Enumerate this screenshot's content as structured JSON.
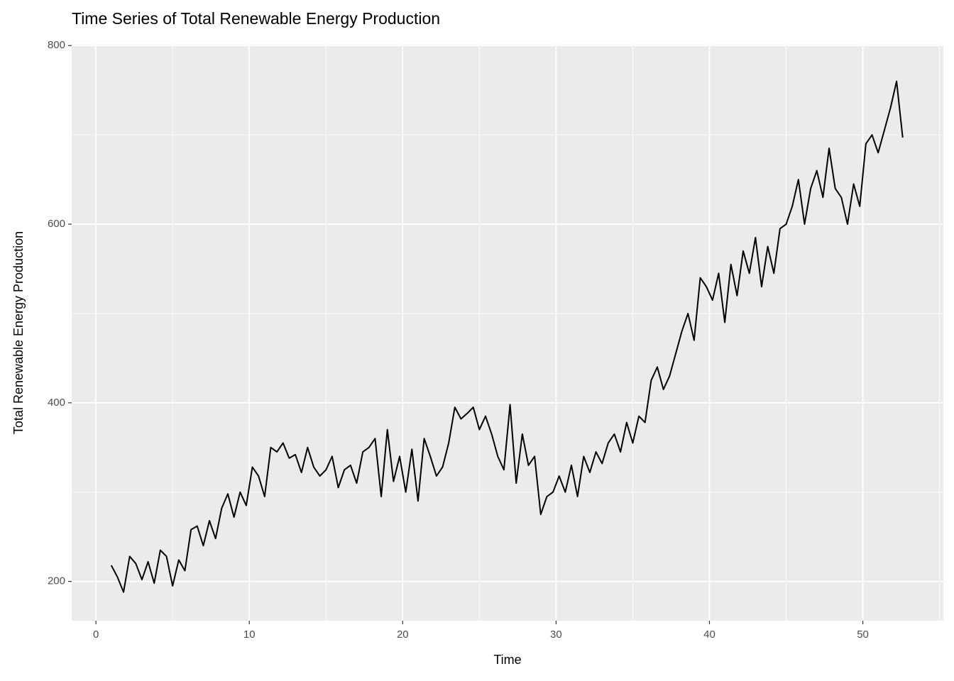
{
  "chart_data": {
    "type": "line",
    "title": "Time Series of Total Renewable Energy Production",
    "x_label": "Time",
    "y_label": "Total Renewable Energy Production",
    "x": [
      1.0,
      1.4,
      1.8,
      2.2,
      2.6,
      3.0,
      3.4,
      3.8,
      4.2,
      4.6,
      5.0,
      5.4,
      5.8,
      6.2,
      6.6,
      7.0,
      7.4,
      7.8,
      8.2,
      8.6,
      9.0,
      9.4,
      9.8,
      10.2,
      10.6,
      11.0,
      11.4,
      11.8,
      12.2,
      12.6,
      13.0,
      13.4,
      13.8,
      14.2,
      14.6,
      15.0,
      15.4,
      15.8,
      16.2,
      16.6,
      17.0,
      17.4,
      17.8,
      18.2,
      18.6,
      19.0,
      19.4,
      19.8,
      20.2,
      20.6,
      21.0,
      21.4,
      21.8,
      22.2,
      22.6,
      23.0,
      23.4,
      23.8,
      24.2,
      24.6,
      25.0,
      25.4,
      25.8,
      26.2,
      26.6,
      27.0,
      27.4,
      27.8,
      28.2,
      28.6,
      29.0,
      29.4,
      29.8,
      30.2,
      30.6,
      31.0,
      31.4,
      31.8,
      32.2,
      32.6,
      33.0,
      33.4,
      33.8,
      34.2,
      34.6,
      35.0,
      35.4,
      35.8,
      36.2,
      36.6,
      37.0,
      37.4,
      37.8,
      38.2,
      38.6,
      39.0,
      39.4,
      39.8,
      40.2,
      40.6,
      41.0,
      41.4,
      41.8,
      42.2,
      42.6,
      43.0,
      43.4,
      43.8,
      44.2,
      44.6,
      45.0,
      45.4,
      45.8,
      46.2,
      46.6,
      47.0,
      47.4,
      47.8,
      48.2,
      48.6,
      49.0,
      49.4,
      49.8,
      50.2,
      50.6,
      51.0,
      51.4,
      51.8,
      52.2,
      52.6
    ],
    "series": [
      {
        "name": "Total",
        "color": "#000000",
        "values": [
          218,
          205,
          188,
          228,
          220,
          202,
          222,
          198,
          235,
          228,
          195,
          224,
          212,
          258,
          262,
          240,
          268,
          248,
          282,
          298,
          272,
          300,
          285,
          328,
          318,
          295,
          350,
          345,
          355,
          338,
          342,
          322,
          350,
          328,
          318,
          325,
          340,
          305,
          325,
          330,
          310,
          345,
          350,
          360,
          295,
          370,
          312,
          340,
          300,
          348,
          290,
          360,
          340,
          318,
          328,
          355,
          395,
          382,
          388,
          395,
          370,
          385,
          365,
          340,
          325,
          398,
          310,
          365,
          330,
          340,
          275,
          295,
          300,
          318,
          300,
          330,
          295,
          340,
          322,
          345,
          332,
          355,
          365,
          345,
          378,
          355,
          385,
          378,
          425,
          440,
          415,
          430,
          455,
          480,
          500,
          470,
          540,
          530,
          515,
          545,
          490,
          555,
          520,
          570,
          545,
          585,
          530,
          575,
          545,
          595,
          600,
          620,
          650,
          600,
          640,
          660,
          630,
          685,
          640,
          630,
          600,
          645,
          620,
          690,
          700,
          680,
          705,
          730,
          760,
          697
        ]
      }
    ],
    "xlim": [
      -1.58,
      55.25
    ],
    "xticks": [
      0,
      10,
      20,
      30,
      40,
      50
    ],
    "x_minor_ticks": [
      5,
      15,
      25,
      35,
      45,
      55
    ],
    "ylim": [
      156,
      801
    ],
    "yticks": [
      200,
      400,
      600,
      800
    ],
    "y_minor_ticks": [
      300,
      500,
      700
    ],
    "grid": true
  }
}
